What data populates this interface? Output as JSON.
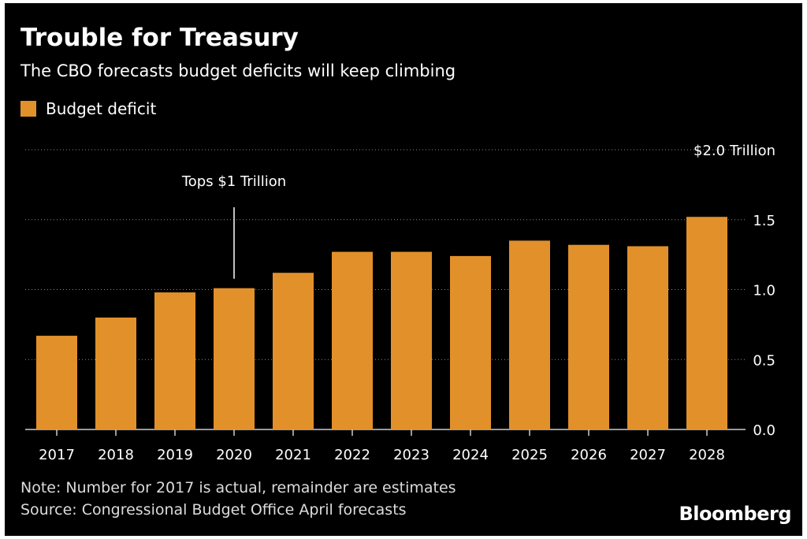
{
  "header": {
    "title": "Trouble for Treasury",
    "subtitle": "The CBO forecasts budget deficits will keep climbing"
  },
  "legend": {
    "label": "Budget deficit"
  },
  "colors": {
    "bar": "#E2902A",
    "background": "#000000",
    "grid": "#8a8a8a",
    "text": "#ffffff"
  },
  "footer": {
    "note": "Note: Number for 2017 is actual, remainder are estimates",
    "source": "Source: Congressional Budget Office April forecasts",
    "brand": "Bloomberg"
  },
  "chart_data": {
    "type": "bar",
    "title": "Trouble for Treasury",
    "subtitle": "The CBO forecasts budget deficits will keep climbing",
    "categories": [
      "2017",
      "2018",
      "2019",
      "2020",
      "2021",
      "2022",
      "2023",
      "2024",
      "2025",
      "2026",
      "2027",
      "2028"
    ],
    "series": [
      {
        "name": "Budget deficit",
        "values": [
          0.67,
          0.8,
          0.98,
          1.01,
          1.12,
          1.27,
          1.27,
          1.24,
          1.35,
          1.32,
          1.31,
          1.52
        ]
      }
    ],
    "ylim": [
      0,
      2.0
    ],
    "yticks": [
      {
        "value": 0.0,
        "label": "0.0"
      },
      {
        "value": 0.5,
        "label": "0.5"
      },
      {
        "value": 1.0,
        "label": "1.0"
      },
      {
        "value": 1.5,
        "label": "1.5"
      },
      {
        "value": 2.0,
        "label": "$2.0 Trillion"
      }
    ],
    "grid": true,
    "legend_position": "top-left",
    "annotations": [
      {
        "category": "2020",
        "text": "Tops $1 Trillion"
      }
    ]
  }
}
